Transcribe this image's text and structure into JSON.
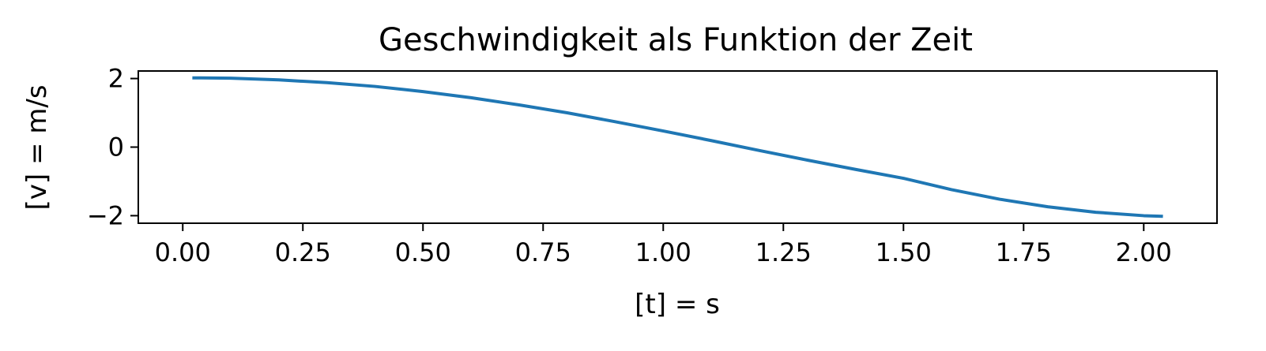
{
  "chart_data": {
    "type": "line",
    "title": "Geschwindigkeit als Funktion der Zeit",
    "xlabel": "[t] = s",
    "ylabel": "[v] = m/s",
    "xlim": [
      -0.0925,
      2.1525
    ],
    "ylim": [
      -2.22,
      2.22
    ],
    "grid": false,
    "xticks": [
      0.0,
      0.25,
      0.5,
      0.75,
      1.0,
      1.25,
      1.5,
      1.75,
      2.0
    ],
    "xtick_labels": [
      "0.00",
      "0.25",
      "0.50",
      "0.75",
      "1.00",
      "1.25",
      "1.50",
      "1.75",
      "2.00"
    ],
    "yticks": [
      2,
      0,
      -2
    ],
    "ytick_labels": [
      "2",
      "0",
      "−2"
    ],
    "series": [
      {
        "color": "#1f77b4",
        "x": [
          0.02,
          0.1,
          0.2,
          0.3,
          0.4,
          0.5,
          0.6,
          0.7,
          0.8,
          0.9,
          1.0,
          1.1,
          1.2,
          1.3,
          1.4,
          1.5,
          1.6,
          1.7,
          1.8,
          1.9,
          2.0,
          2.04
        ],
        "y": [
          2.02,
          2.01,
          1.96,
          1.88,
          1.77,
          1.62,
          1.44,
          1.23,
          1.0,
          0.74,
          0.47,
          0.19,
          -0.1,
          -0.38,
          -0.65,
          -0.91,
          -1.24,
          -1.52,
          -1.74,
          -1.9,
          -2.0,
          -2.02
        ]
      }
    ]
  }
}
